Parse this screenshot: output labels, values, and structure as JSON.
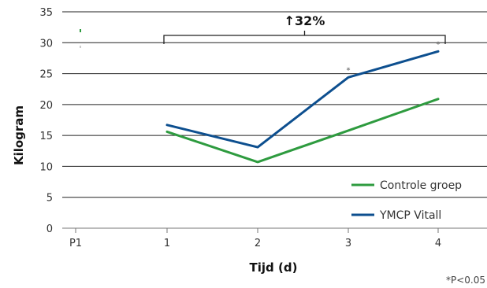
{
  "chart_data": {
    "type": "line",
    "title": "",
    "xlabel": "Tijd (d)",
    "ylabel": "Kilogram",
    "categories": [
      "P1",
      "1",
      "2",
      "3",
      "4"
    ],
    "ylim": [
      0,
      35
    ],
    "yticks": [
      0,
      5,
      10,
      15,
      20,
      25,
      30,
      35
    ],
    "grid": "horizontal",
    "legend_position": "bottom-right",
    "series": [
      {
        "name": "Controle groep",
        "color": "#2e9b3f",
        "values": [
          null,
          15.6,
          10.7,
          15.8,
          20.9
        ]
      },
      {
        "name": "YMCP Vitall",
        "color": "#0d4f8f",
        "values": [
          null,
          16.7,
          13.1,
          24.4,
          28.6
        ]
      }
    ],
    "significance": [
      {
        "category": "3",
        "series": "YMCP Vitall",
        "label": "*"
      },
      {
        "category": "4",
        "series": "YMCP Vitall",
        "label": "*"
      }
    ],
    "bracket": {
      "from": "1",
      "to": "4",
      "label": "↑32%"
    },
    "footnote": "*P<0.05"
  }
}
